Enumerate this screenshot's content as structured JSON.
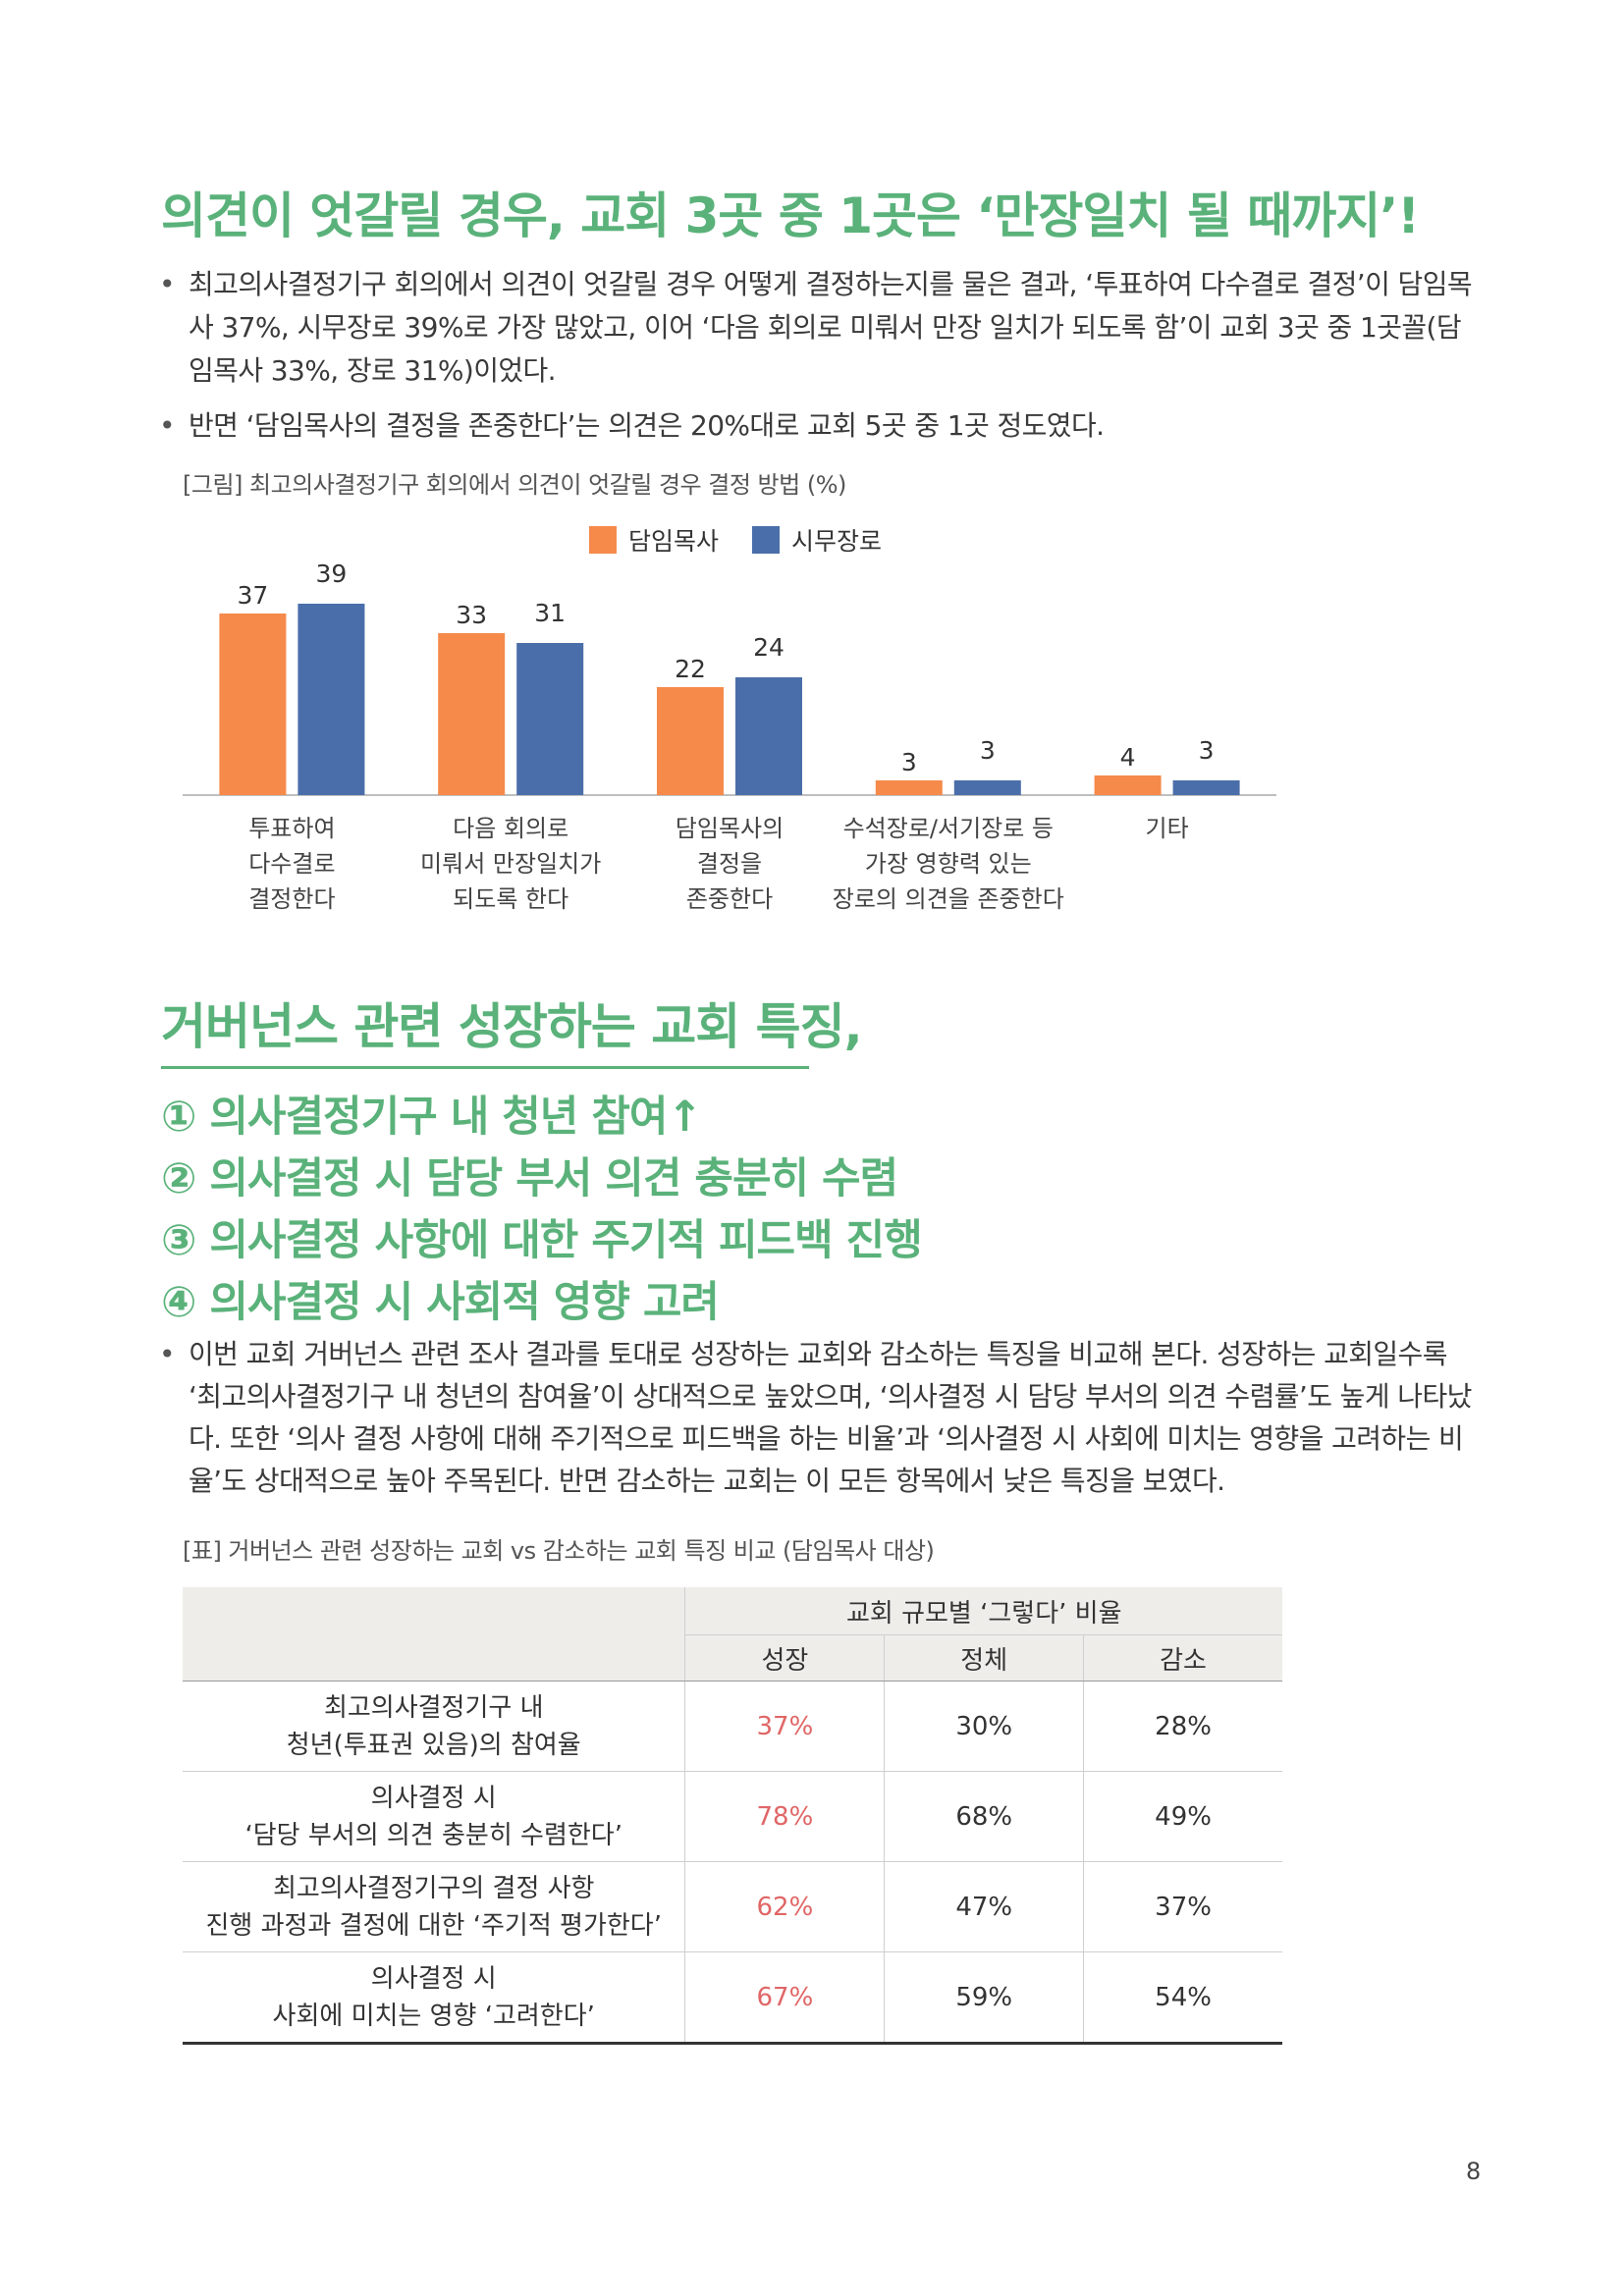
{
  "section1": {
    "title": "의견이 엇갈릴 경우, 교회 3곳 중 1곳은 ‘만장일치 될 때까지’!",
    "bullets": [
      "최고의사결정기구 회의에서 의견이 엇갈릴 경우 어떻게 결정하는지를 물은 결과, ‘투표하여 다수결로 결정’이 담임목사 37%, 시무장로 39%로 가장 많았고, 이어 ‘다음 회의로 미뤄서 만장 일치가 되도록 함’이 교회 3곳 중 1곳꼴(담임목사 33%, 장로 31%)이었다.",
      "반면 ‘담임목사의 결정을 존중한다’는 의견은 20%대로 교회 5곳 중 1곳 정도였다."
    ],
    "figure_caption": "[그림] 최고의사결정기구 회의에서 의견이 엇갈릴 경우 결정 방법 (%)"
  },
  "chart_data": {
    "type": "bar",
    "title": "[그림] 최고의사결정기구 회의에서 의견이 엇갈릴 경우 결정 방법 (%)",
    "categories": [
      "투표하여\n다수결로\n결정한다",
      "다음 회의로\n미뤄서 만장일치가\n되도록 한다",
      "담임목사의\n결정을\n존중한다",
      "수석장로/서기장로 등\n가장 영향력 있는\n장로의 의견을 존중한다",
      "기타"
    ],
    "series": [
      {
        "name": "담임목사",
        "color": "#f58a4b",
        "values": [
          37,
          33,
          22,
          3,
          4
        ]
      },
      {
        "name": "시무장로",
        "color": "#4a6ea9",
        "values": [
          39,
          31,
          24,
          3,
          3
        ]
      }
    ],
    "ylim": [
      0,
      45
    ],
    "xlabel": "",
    "ylabel": "",
    "legend": "top-center",
    "grid": false
  },
  "section2": {
    "title": "거버넌스 관련 성장하는 교회 특징,",
    "items": [
      "① 의사결정기구 내 청년 참여↑",
      "② 의사결정 시 담당 부서 의견 충분히 수렴",
      "③ 의사결정 사항에 대한 주기적 피드백 진행",
      "④ 의사결정 시 사회적 영향 고려"
    ],
    "bullets": [
      "이번 교회 거버넌스 관련 조사 결과를 토대로 성장하는 교회와 감소하는 특징을 비교해 본다. 성장하는 교회일수록 ‘최고의사결정기구 내 청년의 참여율’이 상대적으로 높았으며, ‘의사결정 시 담당 부서의 의견 수렴률’도 높게 나타났다. 또한 ‘의사 결정 사항에 대해 주기적으로 피드백을 하는 비율’과 ‘의사결정 시 사회에 미치는 영향을 고려하는 비율’도 상대적으로 높아 주목된다. 반면 감소하는 교회는 이 모든 항목에서 낮은 특징을 보였다."
    ],
    "table_caption": "[표] 거버넌스 관련 성장하는 교회 vs 감소하는 교회 특징 비교 (담임목사 대상)"
  },
  "table": {
    "group_header": "교회 규모별 ‘그렇다’ 비율",
    "columns": [
      "성장",
      "정체",
      "감소"
    ],
    "rows": [
      {
        "label": "최고의사결정기구 내\n청년(투표권 있음)의 참여율",
        "values": [
          "37%",
          "30%",
          "28%"
        ]
      },
      {
        "label": "의사결정 시\n‘담당 부서의 의견 충분히 수렴한다’",
        "values": [
          "78%",
          "68%",
          "49%"
        ]
      },
      {
        "label": "최고의사결정기구의 결정 사항\n진행 과정과 결정에 대한 ‘주기적 평가한다’",
        "values": [
          "62%",
          "47%",
          "37%"
        ]
      },
      {
        "label": "의사결정 시\n사회에 미치는 영향 ‘고려한다’",
        "values": [
          "67%",
          "59%",
          "54%"
        ]
      }
    ]
  },
  "page_number": "8"
}
